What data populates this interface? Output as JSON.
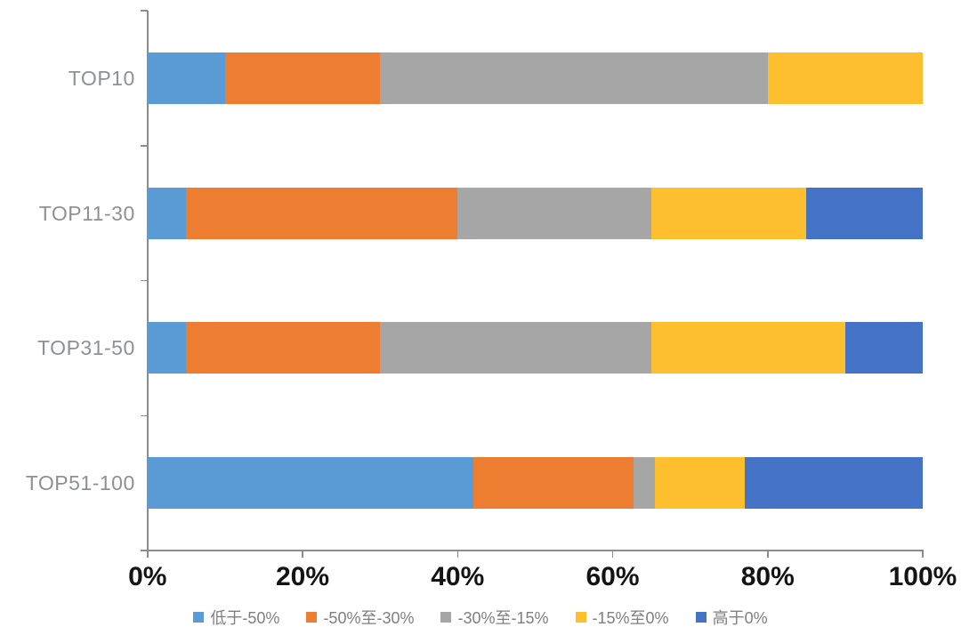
{
  "chart_data": {
    "type": "bar",
    "orientation": "horizontal",
    "stacked_100_percent": true,
    "title": "",
    "xlabel": "",
    "ylabel": "",
    "grid": false,
    "categories": [
      "TOP10",
      "TOP11-30",
      "TOP31-50",
      "TOP51-100"
    ],
    "series": [
      {
        "name": "低于-50%",
        "color": "#5B9BD5",
        "values": [
          10,
          5,
          5,
          42
        ]
      },
      {
        "name": "-50%至-30%",
        "color": "#ED7D31",
        "values": [
          20,
          35,
          25,
          20.7
        ]
      },
      {
        "name": "-30%至-15%",
        "color": "#A6A6A6",
        "values": [
          50,
          25,
          35,
          2.8
        ]
      },
      {
        "name": "-15%至0%",
        "color": "#FDBF2D",
        "values": [
          20,
          20,
          25,
          11.5
        ]
      },
      {
        "name": "高于0%",
        "color": "#4472C4",
        "values": [
          0,
          15,
          10,
          23
        ]
      }
    ],
    "x_axis": {
      "min": 0,
      "max": 100,
      "tick_step": 20,
      "tick_labels": [
        "0%",
        "20%",
        "40%",
        "60%",
        "80%",
        "100%"
      ]
    },
    "legend": {
      "position": "bottom"
    },
    "colors": {
      "axis": "#8C8C8C",
      "category_label": "#8C9196",
      "x_tick_label": "#141414",
      "legend_text": "#7F7F7F",
      "background": "#FFFFFF"
    }
  }
}
